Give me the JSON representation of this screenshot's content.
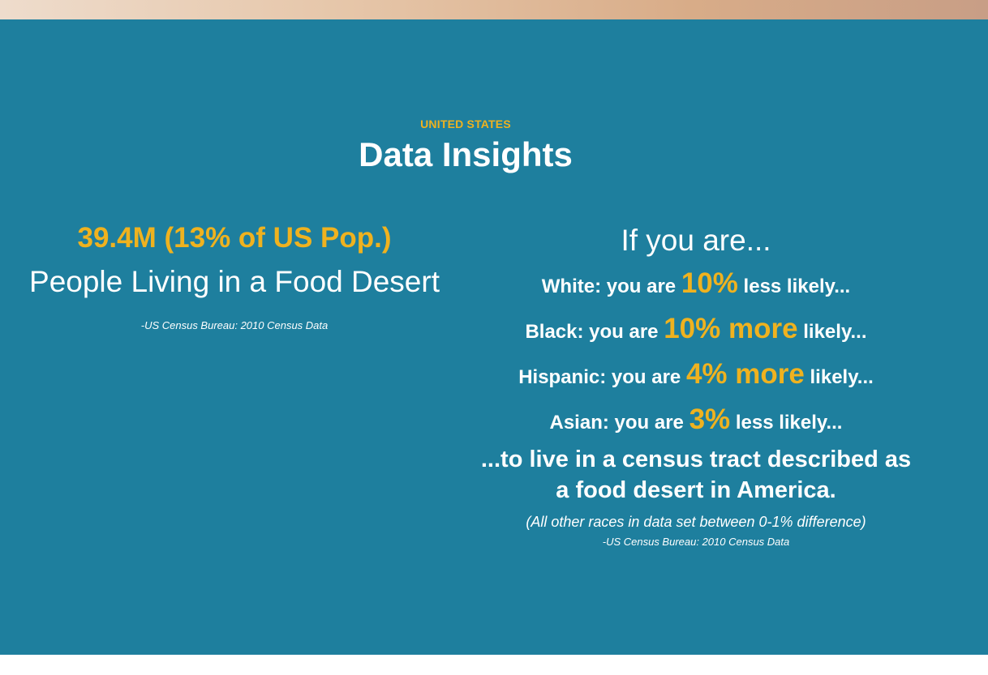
{
  "section": {
    "eyebrow": "UNITED STATES",
    "title": "Data Insights"
  },
  "left": {
    "stat": "39.4M (13% of US Pop.)",
    "label": "People Living in a Food Desert",
    "citation": "-US Census Bureau: 2010 Census Data"
  },
  "right": {
    "heading": "If you are...",
    "races": [
      {
        "prefix": "White: you are",
        "value": "10%",
        "suffix": "less likely..."
      },
      {
        "prefix": "Black: you are",
        "value": "10% more",
        "suffix": "likely..."
      },
      {
        "prefix": "Hispanic: you are",
        "value": "4% more",
        "suffix": "likely..."
      },
      {
        "prefix": "Asian: you are",
        "value": "3%",
        "suffix": "less likely..."
      }
    ],
    "conclusion_line1": "...to live in a census tract described as",
    "conclusion_line2": "a food desert in America.",
    "note": "(All other races in data set between 0-1% difference)",
    "citation": "-US Census Bureau: 2010 Census Data"
  },
  "colors": {
    "section_background": "#1e7f9e",
    "accent": "#efb21f",
    "text": "#ffffff"
  }
}
